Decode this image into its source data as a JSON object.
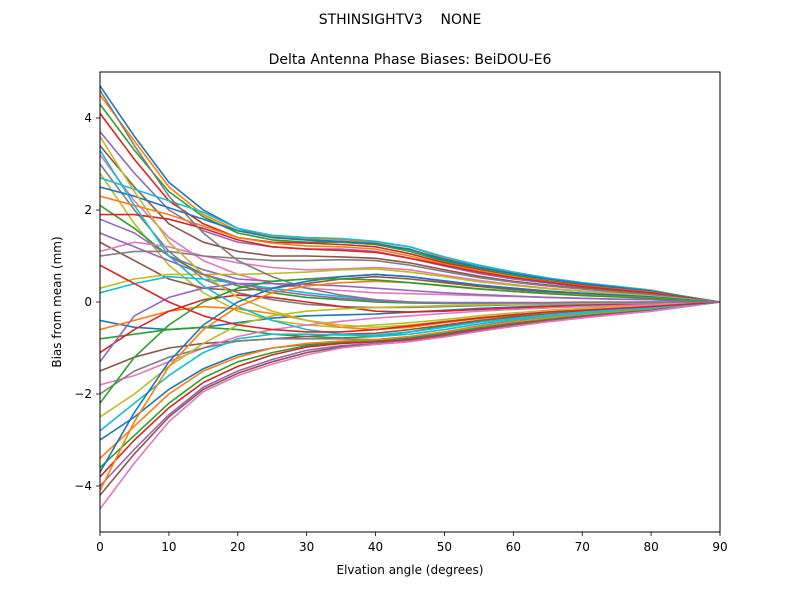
{
  "suptitle": "STHINSIGHTV3    NONE",
  "chart_data": {
    "type": "line",
    "title": "Delta Antenna Phase Biases: BeiDOU-E6",
    "xlabel": "Elvation angle (degrees)",
    "ylabel": "Bias from mean (mm)",
    "xlim": [
      0,
      90
    ],
    "ylim": [
      -5,
      5
    ],
    "x": [
      0,
      5,
      10,
      15,
      20,
      25,
      30,
      35,
      40,
      45,
      50,
      55,
      60,
      65,
      70,
      75,
      80,
      85,
      90
    ],
    "xticks": [
      0,
      10,
      20,
      30,
      40,
      50,
      60,
      70,
      80,
      90
    ],
    "yticks": [
      -4,
      -2,
      0,
      2,
      4
    ],
    "grid": false,
    "legend": "none",
    "colors": [
      "#1f77b4",
      "#ff7f0e",
      "#2ca02c",
      "#d62728",
      "#9467bd",
      "#8c564b",
      "#e377c2",
      "#7f7f7f",
      "#bcbd22",
      "#17becf"
    ],
    "series": [
      {
        "values": [
          4.7,
          3.6,
          2.6,
          2.0,
          1.6,
          1.4,
          1.35,
          1.3,
          1.25,
          1.15,
          0.9,
          0.75,
          0.6,
          0.5,
          0.4,
          0.33,
          0.25,
          0.12,
          0.0
        ]
      },
      {
        "values": [
          4.5,
          3.5,
          2.5,
          1.9,
          1.55,
          1.42,
          1.38,
          1.36,
          1.3,
          1.2,
          0.95,
          0.8,
          0.65,
          0.52,
          0.42,
          0.34,
          0.26,
          0.12,
          0.0
        ]
      },
      {
        "values": [
          4.3,
          3.3,
          2.4,
          1.85,
          1.5,
          1.35,
          1.3,
          1.3,
          1.25,
          1.1,
          0.88,
          0.72,
          0.58,
          0.46,
          0.37,
          0.3,
          0.22,
          0.11,
          0.0
        ]
      },
      {
        "values": [
          4.1,
          3.1,
          2.2,
          1.7,
          1.4,
          1.3,
          1.28,
          1.25,
          1.2,
          1.05,
          0.85,
          0.7,
          0.55,
          0.45,
          0.36,
          0.29,
          0.21,
          0.1,
          0.0
        ]
      },
      {
        "values": [
          3.7,
          2.8,
          2.0,
          1.55,
          1.3,
          1.2,
          1.15,
          1.15,
          1.1,
          0.95,
          0.78,
          0.62,
          0.5,
          0.41,
          0.33,
          0.26,
          0.19,
          0.09,
          0.0
        ]
      },
      {
        "values": [
          3.4,
          2.5,
          1.7,
          1.3,
          1.1,
          1.0,
          1.0,
          0.98,
          0.95,
          0.85,
          0.7,
          0.56,
          0.45,
          0.37,
          0.3,
          0.24,
          0.17,
          0.08,
          0.0
        ]
      },
      {
        "values": [
          3.2,
          2.2,
          1.4,
          0.9,
          0.6,
          0.4,
          0.3,
          0.25,
          0.2,
          0.18,
          0.16,
          0.14,
          0.12,
          0.1,
          0.08,
          0.06,
          0.05,
          0.02,
          0.0
        ]
      },
      {
        "values": [
          3.0,
          2.0,
          1.1,
          0.5,
          0.2,
          0.05,
          -0.05,
          -0.1,
          -0.12,
          -0.12,
          -0.1,
          -0.08,
          -0.06,
          -0.05,
          -0.04,
          -0.03,
          -0.02,
          -0.01,
          0.0
        ]
      },
      {
        "values": [
          2.8,
          1.7,
          0.8,
          0.2,
          -0.2,
          -0.4,
          -0.5,
          -0.55,
          -0.5,
          -0.45,
          -0.38,
          -0.3,
          -0.24,
          -0.18,
          -0.14,
          -0.1,
          -0.07,
          -0.03,
          0.0
        ]
      },
      {
        "values": [
          2.7,
          2.45,
          2.2,
          1.95,
          1.6,
          1.45,
          1.4,
          1.38,
          1.32,
          1.2,
          0.98,
          0.8,
          0.65,
          0.52,
          0.42,
          0.34,
          0.25,
          0.12,
          0.0
        ]
      },
      {
        "values": [
          2.5,
          2.3,
          2.05,
          1.8,
          1.55,
          1.4,
          1.35,
          1.32,
          1.27,
          1.14,
          0.93,
          0.76,
          0.62,
          0.5,
          0.4,
          0.32,
          0.24,
          0.11,
          0.0
        ]
      },
      {
        "values": [
          2.3,
          2.1,
          1.9,
          1.65,
          1.4,
          1.28,
          1.22,
          1.2,
          1.15,
          1.0,
          0.82,
          0.68,
          0.55,
          0.44,
          0.35,
          0.28,
          0.21,
          0.1,
          0.0
        ]
      },
      {
        "values": [
          2.1,
          1.6,
          1.0,
          0.6,
          0.35,
          0.2,
          0.1,
          0.05,
          0.0,
          -0.02,
          -0.03,
          -0.03,
          -0.02,
          -0.02,
          -0.01,
          -0.01,
          0.0,
          0.0,
          0.0
        ]
      },
      {
        "values": [
          1.9,
          1.9,
          1.8,
          1.6,
          1.35,
          1.2,
          1.15,
          1.12,
          1.08,
          0.95,
          0.8,
          0.65,
          0.53,
          0.43,
          0.34,
          0.27,
          0.2,
          0.1,
          0.0
        ]
      },
      {
        "values": [
          1.8,
          1.5,
          1.0,
          0.7,
          0.5,
          0.45,
          0.5,
          0.55,
          0.6,
          0.55,
          0.45,
          0.37,
          0.3,
          0.24,
          0.19,
          0.15,
          0.11,
          0.05,
          0.0
        ]
      },
      {
        "values": [
          1.3,
          0.9,
          0.5,
          0.3,
          0.25,
          0.3,
          0.4,
          0.5,
          0.55,
          0.5,
          0.42,
          0.34,
          0.27,
          0.22,
          0.17,
          0.13,
          0.1,
          0.05,
          0.0
        ]
      },
      {
        "values": [
          1.1,
          1.3,
          1.2,
          1.0,
          0.85,
          0.75,
          0.7,
          0.72,
          0.75,
          0.7,
          0.58,
          0.47,
          0.38,
          0.3,
          0.24,
          0.19,
          0.14,
          0.07,
          0.0
        ]
      },
      {
        "values": [
          1.0,
          1.1,
          1.1,
          1.0,
          0.95,
          0.9,
          0.9,
          0.92,
          0.9,
          0.8,
          0.66,
          0.53,
          0.43,
          0.35,
          0.28,
          0.22,
          0.16,
          0.08,
          0.0
        ]
      },
      {
        "values": [
          0.3,
          0.5,
          0.6,
          0.6,
          0.6,
          0.62,
          0.65,
          0.7,
          0.72,
          0.65,
          0.55,
          0.44,
          0.36,
          0.29,
          0.23,
          0.18,
          0.13,
          0.06,
          0.0
        ]
      },
      {
        "values": [
          0.2,
          0.4,
          0.55,
          0.5,
          0.4,
          0.3,
          0.2,
          0.12,
          0.05,
          0.0,
          -0.02,
          -0.03,
          -0.03,
          -0.02,
          -0.02,
          -0.01,
          -0.01,
          0.0,
          0.0
        ]
      },
      {
        "values": [
          -0.4,
          -0.55,
          -0.6,
          -0.55,
          -0.45,
          -0.35,
          -0.3,
          -0.28,
          -0.26,
          -0.22,
          -0.18,
          -0.14,
          -0.11,
          -0.09,
          -0.07,
          -0.05,
          -0.04,
          -0.02,
          0.0
        ]
      },
      {
        "values": [
          -0.6,
          -0.4,
          -0.2,
          -0.1,
          -0.15,
          -0.25,
          -0.4,
          -0.55,
          -0.6,
          -0.55,
          -0.45,
          -0.36,
          -0.29,
          -0.23,
          -0.18,
          -0.14,
          -0.1,
          -0.05,
          0.0
        ]
      },
      {
        "values": [
          -0.8,
          -0.7,
          -0.6,
          -0.55,
          -0.6,
          -0.7,
          -0.75,
          -0.78,
          -0.75,
          -0.65,
          -0.52,
          -0.42,
          -0.34,
          -0.27,
          -0.21,
          -0.16,
          -0.12,
          -0.06,
          0.0
        ]
      },
      {
        "values": [
          -1.1,
          -0.6,
          -0.2,
          0.05,
          0.15,
          0.1,
          0.0,
          -0.1,
          -0.2,
          -0.22,
          -0.2,
          -0.16,
          -0.13,
          -0.1,
          -0.08,
          -0.06,
          -0.05,
          -0.02,
          0.0
        ]
      },
      {
        "values": [
          -1.3,
          -0.3,
          0.1,
          0.3,
          0.4,
          0.4,
          0.38,
          0.35,
          0.3,
          0.25,
          0.2,
          0.16,
          0.13,
          0.1,
          0.08,
          0.06,
          0.05,
          0.02,
          0.0
        ]
      },
      {
        "values": [
          -1.5,
          -1.2,
          -1.0,
          -0.9,
          -0.85,
          -0.8,
          -0.75,
          -0.7,
          -0.68,
          -0.6,
          -0.5,
          -0.4,
          -0.32,
          -0.26,
          -0.2,
          -0.16,
          -0.12,
          -0.06,
          0.0
        ]
      },
      {
        "values": [
          -1.8,
          -1.6,
          -1.3,
          -1.0,
          -0.75,
          -0.6,
          -0.5,
          -0.42,
          -0.35,
          -0.3,
          -0.25,
          -0.2,
          -0.16,
          -0.13,
          -0.1,
          -0.08,
          -0.06,
          -0.03,
          0.0
        ]
      },
      {
        "values": [
          -2.0,
          -1.5,
          -1.2,
          -1.0,
          -0.85,
          -0.8,
          -0.8,
          -0.8,
          -0.82,
          -0.75,
          -0.65,
          -0.52,
          -0.42,
          -0.34,
          -0.27,
          -0.21,
          -0.15,
          -0.07,
          0.0
        ]
      },
      {
        "values": [
          -2.5,
          -2.0,
          -1.4,
          -0.9,
          -0.5,
          -0.3,
          -0.2,
          -0.15,
          -0.12,
          -0.1,
          -0.08,
          -0.06,
          -0.05,
          -0.04,
          -0.03,
          -0.02,
          -0.02,
          -0.01,
          0.0
        ]
      },
      {
        "values": [
          -2.8,
          -2.2,
          -1.6,
          -1.1,
          -0.8,
          -0.7,
          -0.7,
          -0.72,
          -0.72,
          -0.65,
          -0.55,
          -0.44,
          -0.36,
          -0.28,
          -0.22,
          -0.17,
          -0.13,
          -0.06,
          0.0
        ]
      },
      {
        "values": [
          -3.0,
          -2.5,
          -1.9,
          -1.45,
          -1.15,
          -1.0,
          -0.92,
          -0.88,
          -0.85,
          -0.78,
          -0.68,
          -0.56,
          -0.45,
          -0.36,
          -0.29,
          -0.23,
          -0.17,
          -0.08,
          0.0
        ]
      },
      {
        "values": [
          -3.4,
          -2.7,
          -2.0,
          -1.5,
          -1.2,
          -1.0,
          -0.9,
          -0.85,
          -0.82,
          -0.75,
          -0.65,
          -0.53,
          -0.43,
          -0.35,
          -0.28,
          -0.22,
          -0.16,
          -0.08,
          0.0
        ]
      },
      {
        "values": [
          -3.6,
          -2.9,
          -2.2,
          -1.65,
          -1.3,
          -1.1,
          -0.95,
          -0.88,
          -0.85,
          -0.8,
          -0.7,
          -0.58,
          -0.47,
          -0.38,
          -0.3,
          -0.24,
          -0.18,
          -0.09,
          0.0
        ]
      },
      {
        "values": [
          -3.8,
          -3.0,
          -2.3,
          -1.75,
          -1.4,
          -1.15,
          -0.98,
          -0.9,
          -0.87,
          -0.82,
          -0.72,
          -0.6,
          -0.49,
          -0.4,
          -0.32,
          -0.25,
          -0.19,
          -0.09,
          0.0
        ]
      },
      {
        "values": [
          -4.0,
          -3.2,
          -2.45,
          -1.85,
          -1.5,
          -1.25,
          -1.05,
          -0.95,
          -0.9,
          -0.85,
          -0.74,
          -0.62,
          -0.51,
          -0.41,
          -0.33,
          -0.26,
          -0.2,
          -0.1,
          0.0
        ]
      },
      {
        "values": [
          -4.2,
          -3.3,
          -2.5,
          -1.9,
          -1.55,
          -1.3,
          -1.1,
          -0.98,
          -0.92,
          -0.86,
          -0.75,
          -0.63,
          -0.52,
          -0.42,
          -0.34,
          -0.27,
          -0.2,
          -0.1,
          0.0
        ]
      },
      {
        "values": [
          -4.5,
          -3.5,
          -2.6,
          -1.95,
          -1.6,
          -1.35,
          -1.15,
          -1.0,
          -0.92,
          -0.86,
          -0.76,
          -0.64,
          -0.53,
          -0.43,
          -0.35,
          -0.27,
          -0.2,
          -0.1,
          0.0
        ]
      },
      {
        "values": [
          4.6,
          3.4,
          2.3,
          1.5,
          0.9,
          0.55,
          0.3,
          0.15,
          0.05,
          0.0,
          -0.02,
          -0.02,
          -0.02,
          -0.02,
          -0.01,
          -0.01,
          -0.01,
          0.0,
          0.0
        ]
      },
      {
        "values": [
          3.6,
          2.4,
          1.3,
          0.6,
          0.1,
          -0.2,
          -0.4,
          -0.5,
          -0.55,
          -0.5,
          -0.42,
          -0.34,
          -0.27,
          -0.22,
          -0.17,
          -0.13,
          -0.1,
          -0.05,
          0.0
        ]
      },
      {
        "values": [
          3.3,
          2.1,
          1.0,
          0.35,
          -0.1,
          -0.4,
          -0.6,
          -0.7,
          -0.75,
          -0.7,
          -0.6,
          -0.48,
          -0.39,
          -0.31,
          -0.25,
          -0.19,
          -0.14,
          -0.07,
          0.0
        ]
      },
      {
        "values": [
          -3.7,
          -2.4,
          -1.3,
          -0.5,
          0.0,
          0.3,
          0.45,
          0.55,
          0.6,
          0.55,
          0.46,
          0.37,
          0.3,
          0.24,
          0.19,
          0.15,
          0.11,
          0.05,
          0.0
        ]
      },
      {
        "values": [
          -4.1,
          -2.6,
          -1.4,
          -0.6,
          -0.1,
          0.2,
          0.35,
          0.42,
          0.45,
          0.42,
          0.36,
          0.29,
          0.23,
          0.19,
          0.15,
          0.12,
          0.09,
          0.04,
          0.0
        ]
      },
      {
        "values": [
          -2.2,
          -1.2,
          -0.5,
          0.0,
          0.3,
          0.45,
          0.5,
          0.5,
          0.48,
          0.42,
          0.35,
          0.28,
          0.23,
          0.18,
          0.14,
          0.11,
          0.08,
          0.04,
          0.0
        ]
      },
      {
        "values": [
          0.8,
          0.4,
          0.0,
          -0.3,
          -0.5,
          -0.6,
          -0.65,
          -0.65,
          -0.6,
          -0.52,
          -0.43,
          -0.35,
          -0.28,
          -0.22,
          -0.18,
          -0.14,
          -0.1,
          -0.05,
          0.0
        ]
      },
      {
        "values": [
          1.5,
          1.2,
          0.9,
          0.6,
          0.4,
          0.25,
          0.15,
          0.08,
          0.03,
          0.0,
          -0.01,
          -0.01,
          -0.01,
          -0.01,
          0.0,
          0.0,
          0.0,
          0.0,
          0.0
        ]
      }
    ]
  }
}
